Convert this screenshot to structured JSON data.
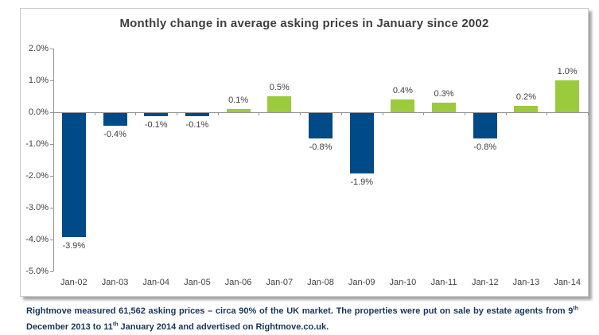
{
  "chart_data": {
    "type": "bar",
    "title": "Monthly change in average asking prices in January since 2002",
    "categories": [
      "Jan-02",
      "Jan-03",
      "Jan-04",
      "Jan-05",
      "Jan-06",
      "Jan-07",
      "Jan-08",
      "Jan-09",
      "Jan-10",
      "Jan-11",
      "Jan-12",
      "Jan-13",
      "Jan-14"
    ],
    "values": [
      -3.9,
      -0.4,
      -0.1,
      -0.1,
      0.1,
      0.5,
      -0.8,
      -1.9,
      0.4,
      0.3,
      -0.8,
      0.2,
      1.0
    ],
    "labels": [
      "-3.9%",
      "-0.4%",
      "-0.1%",
      "-0.1%",
      "0.1%",
      "0.5%",
      "-0.8%",
      "-1.9%",
      "0.4%",
      "0.3%",
      "-0.8%",
      "0.2%",
      "1.0%"
    ],
    "xlabel": "",
    "ylabel": "",
    "ylim": [
      -5.0,
      2.0
    ],
    "yticks": [
      {
        "value": 2.0,
        "label": "2.0%"
      },
      {
        "value": 1.0,
        "label": "1.0%"
      },
      {
        "value": 0.0,
        "label": "0.0%"
      },
      {
        "value": -1.0,
        "label": "-1.0%"
      },
      {
        "value": -2.0,
        "label": "-2.0%"
      },
      {
        "value": -3.0,
        "label": "-3.0%"
      },
      {
        "value": -4.0,
        "label": "-4.0%"
      },
      {
        "value": -5.0,
        "label": "-5.0%"
      }
    ],
    "grid": false,
    "legend": "none",
    "colors": {
      "positive": "#9cca3d",
      "negative": "#004a87",
      "axis": "#969696",
      "text": "#3f3f3f"
    }
  },
  "footer": {
    "p1": "Rightmove measured 61,562 asking prices – circa 90% of the UK market. The properties were put on sale by estate agents from 9",
    "sup1": "th",
    "p2": " December 2013 to 11",
    "sup2": "th",
    "p3": " January 2014 and advertised on Rightmove.co.uk.",
    "color": "#17365d"
  }
}
